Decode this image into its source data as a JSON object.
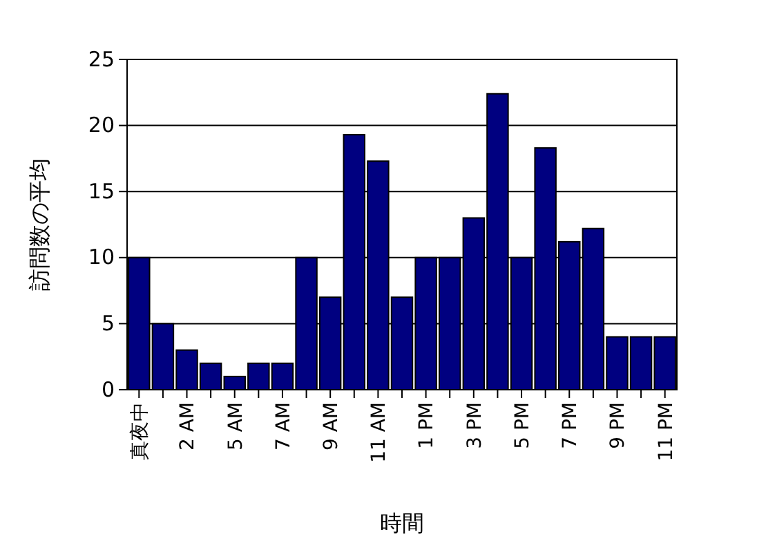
{
  "chart_data": {
    "type": "bar",
    "xlabel": "時間",
    "ylabel": "訪問数の平均",
    "categories": [
      "真夜中",
      null,
      "2 AM",
      null,
      "5 AM",
      null,
      "7 AM",
      null,
      "9 AM",
      null,
      "11 AM",
      null,
      "1 PM",
      null,
      "3 PM",
      null,
      "5 PM",
      null,
      "7 PM",
      null,
      "9 PM",
      null,
      "11 PM"
    ],
    "values": [
      10,
      5,
      3,
      2,
      1,
      2,
      2,
      10,
      7,
      19.3,
      17.3,
      7,
      10,
      10,
      13,
      22.4,
      10,
      18.3,
      11.2,
      12.2,
      4,
      4,
      4
    ],
    "color": "#000080",
    "ylim": [
      0,
      25
    ],
    "yticks": [
      0,
      5,
      10,
      15,
      20,
      25
    ],
    "grid": "y"
  }
}
